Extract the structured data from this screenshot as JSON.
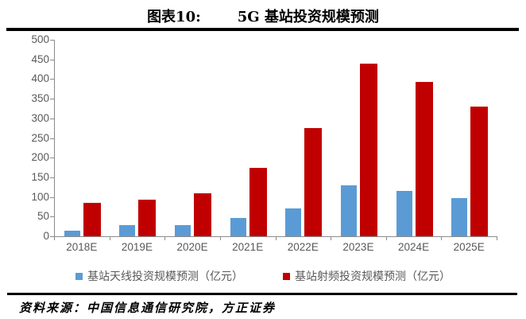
{
  "header": {
    "label": "图表10:",
    "title": "5G 基站投资规模预测"
  },
  "chart_data": {
    "type": "bar",
    "title": "5G 基站投资规模预测",
    "categories": [
      "2018E",
      "2019E",
      "2020E",
      "2021E",
      "2022E",
      "2023E",
      "2024E",
      "2025E"
    ],
    "series": [
      {
        "name": "基站天线投资规模预测（亿元）",
        "color": "#5B9BD5",
        "values": [
          15,
          29,
          29,
          46,
          70,
          130,
          116,
          97
        ]
      },
      {
        "name": "基站射频投资规模预测（亿元）",
        "color": "#C00000",
        "values": [
          85,
          93,
          110,
          174,
          275,
          440,
          393,
          330
        ]
      }
    ],
    "xlabel": "",
    "ylabel": "",
    "ylim": [
      0,
      500
    ],
    "ytick_step": 50,
    "yticks": [
      500,
      450,
      400,
      350,
      300,
      250,
      200,
      150,
      100,
      50,
      0
    ],
    "grid": false,
    "legend_position": "bottom",
    "axis_color": "#8c8c8c",
    "tick_label_color": "#595959"
  },
  "footer": {
    "source": "资料来源：中国信息通信研究院，方正证券"
  }
}
